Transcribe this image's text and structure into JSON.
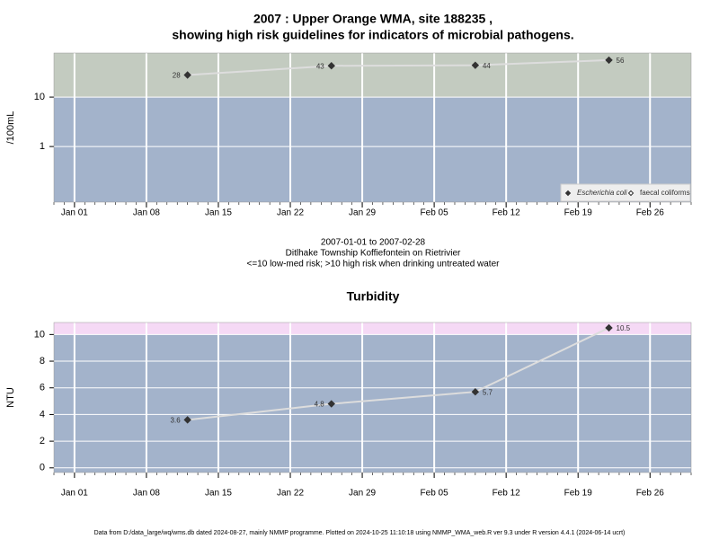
{
  "chart_data": [
    {
      "type": "line",
      "title": "2007 : Upper Orange WMA, site 188235 ,",
      "subtitle": "showing high risk guidelines for indicators of microbial pathogens.",
      "caption": [
        "2007-01-01 to 2007-02-28",
        "Ditlhake Township Koffiefontein on Rietrivier",
        "<=10 low-med risk; >10 high risk when drinking untreated water"
      ],
      "ylabel": "/100mL",
      "log_y": true,
      "x": [
        "2007-01-12",
        "2007-01-26",
        "2007-02-09",
        "2007-02-22"
      ],
      "series": [
        {
          "name": "Escherichia coli",
          "color": "#333333",
          "marker": "filled",
          "values": [
            28,
            43,
            44,
            56
          ]
        },
        {
          "name": "faecal coliforms",
          "color": "#333333",
          "marker": "hollow",
          "values": [
            null,
            null,
            null,
            null
          ]
        }
      ],
      "xlim": [
        "2006-12-30",
        "2007-03-02"
      ],
      "xticks": [
        {
          "value": "2007-01-01",
          "label": "Jan 01"
        },
        {
          "value": "2007-01-08",
          "label": "Jan 08"
        },
        {
          "value": "2007-01-15",
          "label": "Jan 15"
        },
        {
          "value": "2007-01-22",
          "label": "Jan 22"
        },
        {
          "value": "2007-01-29",
          "label": "Jan 29"
        },
        {
          "value": "2007-02-05",
          "label": "Feb 05"
        },
        {
          "value": "2007-02-12",
          "label": "Feb 12"
        },
        {
          "value": "2007-02-19",
          "label": "Feb 19"
        },
        {
          "value": "2007-02-26",
          "label": "Feb 26"
        }
      ],
      "ylim": [
        0.075,
        78
      ],
      "yticks": [
        1,
        10
      ],
      "threshold": 10,
      "band_colors": {
        "below": "#a3b3cb",
        "above": "#c3cbc0"
      },
      "line_color": "#dddddd",
      "grid": true,
      "legend": "bottom-right"
    },
    {
      "type": "line",
      "title": "Turbidity",
      "ylabel": "NTU",
      "log_y": false,
      "x": [
        "2007-01-12",
        "2007-01-26",
        "2007-02-09",
        "2007-02-22"
      ],
      "series": [
        {
          "name": "Turbidity",
          "color": "#333333",
          "marker": "filled",
          "values": [
            3.6,
            4.8,
            5.7,
            10.5
          ]
        }
      ],
      "xlim": [
        "2006-12-30",
        "2007-03-02"
      ],
      "xticks": [
        {
          "value": "2007-01-01",
          "label": "Jan 01"
        },
        {
          "value": "2007-01-08",
          "label": "Jan 08"
        },
        {
          "value": "2007-01-15",
          "label": "Jan 15"
        },
        {
          "value": "2007-01-22",
          "label": "Jan 22"
        },
        {
          "value": "2007-01-29",
          "label": "Jan 29"
        },
        {
          "value": "2007-02-05",
          "label": "Feb 05"
        },
        {
          "value": "2007-02-12",
          "label": "Feb 12"
        },
        {
          "value": "2007-02-19",
          "label": "Feb 19"
        },
        {
          "value": "2007-02-26",
          "label": "Feb 26"
        }
      ],
      "ylim": [
        -0.35,
        10.9
      ],
      "yticks": [
        0,
        2,
        4,
        6,
        8,
        10
      ],
      "threshold": 10,
      "band_colors": {
        "below": "#a3b3cb",
        "above": "#f5d9f5"
      },
      "line_color": "#dddddd",
      "grid": true
    },
    {
      "type": "footer",
      "text": "Data from D:/data_large/wq/wms.db dated 2024-08-27, mainly NMMP programme. Plotted on 2024-10-25 11:10:18 using NMMP_WMA_web.R ver 9.3 under R version 4.4.1 (2024-06-14 ucrt)"
    }
  ]
}
